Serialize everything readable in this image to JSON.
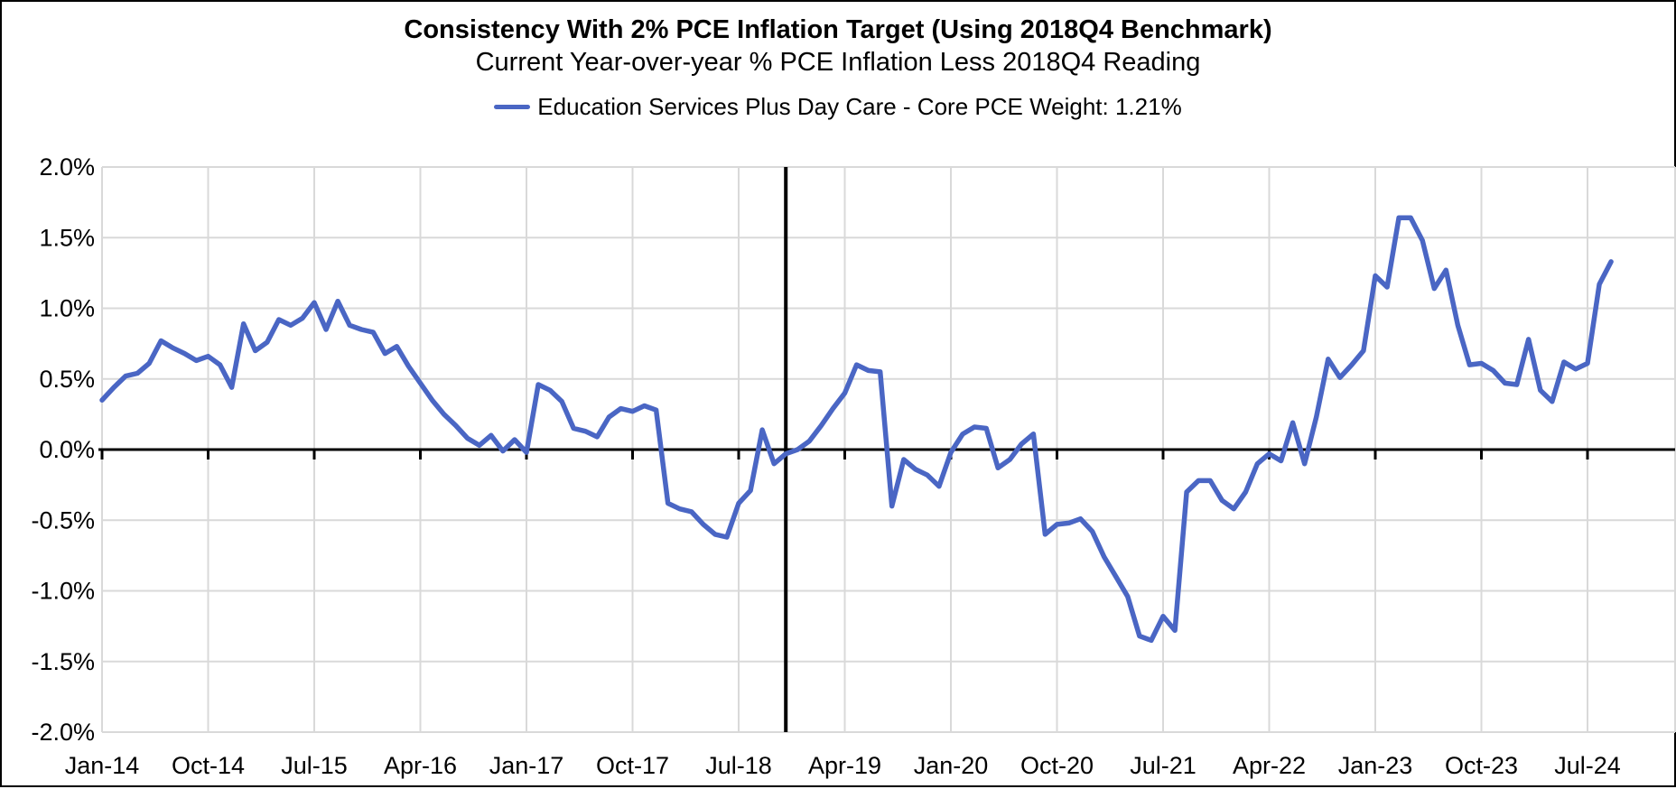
{
  "chart_data": {
    "type": "line",
    "title": "Consistency With 2% PCE Inflation Target (Using 2018Q4 Benchmark)",
    "subtitle": "Current Year-over-year % PCE Inflation Less 2018Q4 Reading",
    "legend": "Education Services Plus Day Care  - Core PCE Weight: 1.21%",
    "series_name": "Education Services Plus Day Care",
    "core_pce_weight": "1.21%",
    "line_color": "#4a66c4",
    "grid_color": "#d9d9d9",
    "axis_color": "#000000",
    "grid": true,
    "legend_position": "top",
    "ylim": [
      -2.0,
      2.0
    ],
    "y_tick_step": 0.5,
    "y_tick_labels": [
      "2.0%",
      "1.5%",
      "1.0%",
      "0.5%",
      "0.0%",
      "-0.5%",
      "-1.0%",
      "-1.5%",
      "-2.0%"
    ],
    "x_tick_interval_months": 9,
    "x_tick_labels": [
      "Jan-14",
      "Oct-14",
      "Jul-15",
      "Apr-16",
      "Jan-17",
      "Oct-17",
      "Jul-18",
      "Apr-19",
      "Jan-20",
      "Oct-20",
      "Jul-21",
      "Apr-22",
      "Jan-23",
      "Oct-23",
      "Jul-24"
    ],
    "benchmark_vline_at": "Nov-18",
    "x": [
      "Jan-14",
      "Feb-14",
      "Mar-14",
      "Apr-14",
      "May-14",
      "Jun-14",
      "Jul-14",
      "Aug-14",
      "Sep-14",
      "Oct-14",
      "Nov-14",
      "Dec-14",
      "Jan-15",
      "Feb-15",
      "Mar-15",
      "Apr-15",
      "May-15",
      "Jun-15",
      "Jul-15",
      "Aug-15",
      "Sep-15",
      "Oct-15",
      "Nov-15",
      "Dec-15",
      "Jan-16",
      "Feb-16",
      "Mar-16",
      "Apr-16",
      "May-16",
      "Jun-16",
      "Jul-16",
      "Aug-16",
      "Sep-16",
      "Oct-16",
      "Nov-16",
      "Dec-16",
      "Jan-17",
      "Feb-17",
      "Mar-17",
      "Apr-17",
      "May-17",
      "Jun-17",
      "Jul-17",
      "Aug-17",
      "Sep-17",
      "Oct-17",
      "Nov-17",
      "Dec-17",
      "Jan-18",
      "Feb-18",
      "Mar-18",
      "Apr-18",
      "May-18",
      "Jun-18",
      "Jul-18",
      "Aug-18",
      "Sep-18",
      "Oct-18",
      "Nov-18",
      "Dec-18",
      "Jan-19",
      "Feb-19",
      "Mar-19",
      "Apr-19",
      "May-19",
      "Jun-19",
      "Jul-19",
      "Aug-19",
      "Sep-19",
      "Oct-19",
      "Nov-19",
      "Dec-19",
      "Jan-20",
      "Feb-20",
      "Mar-20",
      "Apr-20",
      "May-20",
      "Jun-20",
      "Jul-20",
      "Aug-20",
      "Sep-20",
      "Oct-20",
      "Nov-20",
      "Dec-20",
      "Jan-21",
      "Feb-21",
      "Mar-21",
      "Apr-21",
      "May-21",
      "Jun-21",
      "Jul-21",
      "Aug-21",
      "Sep-21",
      "Oct-21",
      "Nov-21",
      "Dec-21",
      "Jan-22",
      "Feb-22",
      "Mar-22",
      "Apr-22",
      "May-22",
      "Jun-22",
      "Jul-22",
      "Aug-22",
      "Sep-22",
      "Oct-22",
      "Nov-22",
      "Dec-22",
      "Jan-23",
      "Feb-23",
      "Mar-23",
      "Apr-23",
      "May-23",
      "Jun-23",
      "Jul-23",
      "Aug-23",
      "Sep-23",
      "Oct-23",
      "Nov-23",
      "Dec-23",
      "Jan-24",
      "Feb-24",
      "Mar-24",
      "Apr-24",
      "May-24",
      "Jun-24",
      "Jul-24",
      "Aug-24",
      "Sep-24"
    ],
    "values": [
      0.35,
      0.44,
      0.52,
      0.54,
      0.61,
      0.77,
      0.72,
      0.68,
      0.63,
      0.66,
      0.6,
      0.44,
      0.89,
      0.7,
      0.76,
      0.92,
      0.88,
      0.93,
      1.04,
      0.85,
      1.05,
      0.88,
      0.85,
      0.83,
      0.68,
      0.73,
      0.59,
      0.47,
      0.35,
      0.25,
      0.17,
      0.08,
      0.03,
      0.1,
      -0.01,
      0.07,
      -0.02,
      0.46,
      0.42,
      0.34,
      0.15,
      0.13,
      0.09,
      0.23,
      0.29,
      0.27,
      0.31,
      0.28,
      -0.38,
      -0.42,
      -0.44,
      -0.53,
      -0.6,
      -0.62,
      -0.38,
      -0.29,
      0.14,
      -0.1,
      -0.03,
      0.0,
      0.06,
      0.17,
      0.29,
      0.4,
      0.6,
      0.56,
      0.55,
      -0.4,
      -0.07,
      -0.14,
      -0.18,
      -0.26,
      -0.02,
      0.11,
      0.16,
      0.15,
      -0.13,
      -0.07,
      0.04,
      0.11,
      -0.6,
      -0.53,
      -0.52,
      -0.49,
      -0.58,
      -0.76,
      -0.9,
      -1.04,
      -1.32,
      -1.35,
      -1.18,
      -1.28,
      -0.3,
      -0.22,
      -0.22,
      -0.36,
      -0.42,
      -0.3,
      -0.1,
      -0.03,
      -0.08,
      0.19,
      -0.1,
      0.23,
      0.64,
      0.51,
      0.6,
      0.7,
      1.23,
      1.15,
      1.64,
      1.64,
      1.48,
      1.14,
      1.27,
      0.88,
      0.6,
      0.61,
      0.56,
      0.47,
      0.46,
      0.78,
      0.42,
      0.34,
      0.62,
      0.57,
      0.61,
      1.17,
      1.33
    ]
  }
}
